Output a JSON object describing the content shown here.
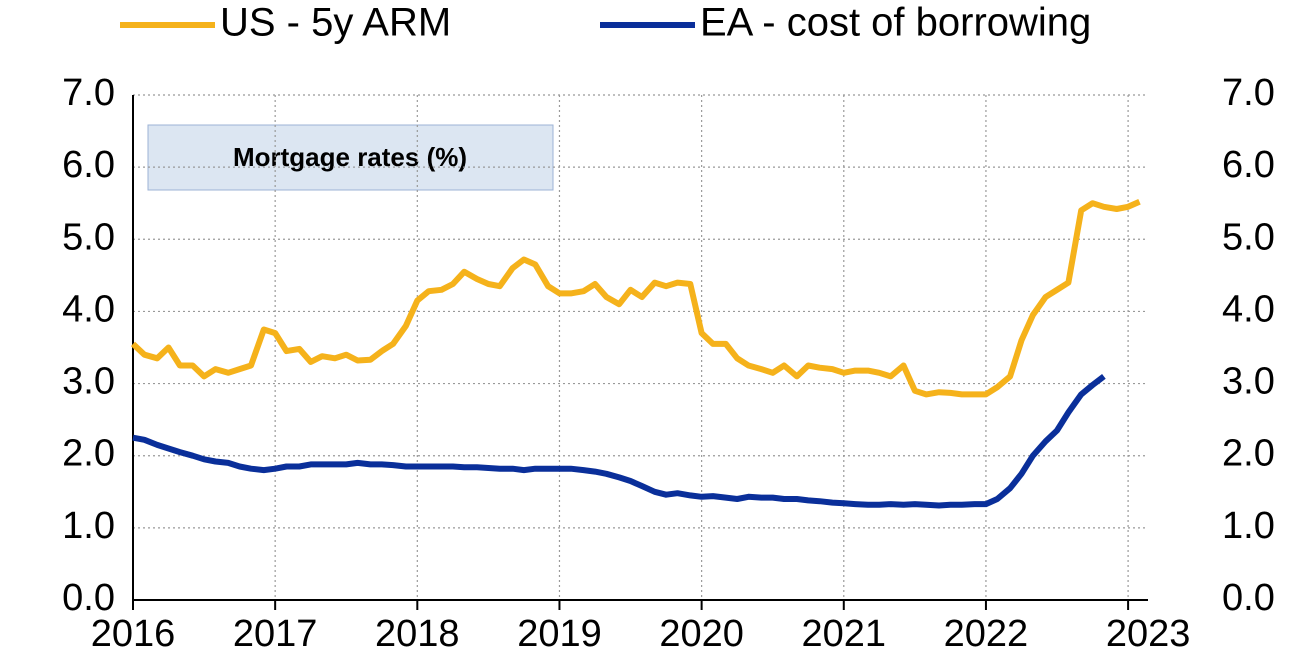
{
  "chart_data": {
    "type": "line",
    "title": "Mortgage rates (%)",
    "x": [
      2016,
      2016.08,
      2016.17,
      2016.25,
      2016.33,
      2016.42,
      2016.5,
      2016.58,
      2016.67,
      2016.75,
      2016.83,
      2016.92,
      2017,
      2017.08,
      2017.17,
      2017.25,
      2017.33,
      2017.42,
      2017.5,
      2017.58,
      2017.67,
      2017.75,
      2017.83,
      2017.92,
      2018,
      2018.08,
      2018.17,
      2018.25,
      2018.33,
      2018.42,
      2018.5,
      2018.58,
      2018.67,
      2018.75,
      2018.83,
      2018.92,
      2019,
      2019.08,
      2019.17,
      2019.25,
      2019.33,
      2019.42,
      2019.5,
      2019.58,
      2019.67,
      2019.75,
      2019.83,
      2019.92,
      2020,
      2020.08,
      2020.17,
      2020.25,
      2020.33,
      2020.42,
      2020.5,
      2020.58,
      2020.67,
      2020.75,
      2020.83,
      2020.92,
      2021,
      2021.08,
      2021.17,
      2021.25,
      2021.33,
      2021.42,
      2021.5,
      2021.58,
      2021.67,
      2021.75,
      2021.83,
      2021.92,
      2022,
      2022.08,
      2022.17,
      2022.25,
      2022.33,
      2022.42,
      2022.5,
      2022.58,
      2022.67,
      2022.75,
      2022.83,
      2022.92,
      2023,
      2023.08
    ],
    "series": [
      {
        "name": "US - 5y ARM",
        "color": "#f5b21b",
        "values": [
          3.55,
          3.4,
          3.35,
          3.5,
          3.25,
          3.25,
          3.1,
          3.2,
          3.15,
          3.2,
          3.25,
          3.75,
          3.7,
          3.45,
          3.48,
          3.3,
          3.38,
          3.35,
          3.4,
          3.32,
          3.33,
          3.45,
          3.55,
          3.8,
          4.15,
          4.28,
          4.3,
          4.38,
          4.55,
          4.45,
          4.38,
          4.35,
          4.6,
          4.72,
          4.65,
          4.35,
          4.25,
          4.25,
          4.28,
          4.38,
          4.2,
          4.1,
          4.3,
          4.2,
          4.4,
          4.35,
          4.4,
          4.38,
          3.7,
          3.55,
          3.55,
          3.35,
          3.25,
          3.2,
          3.15,
          3.25,
          3.1,
          3.25,
          3.22,
          3.2,
          3.15,
          3.18,
          3.18,
          3.15,
          3.1,
          3.25,
          2.9,
          2.85,
          2.88,
          2.87,
          2.85,
          2.85,
          2.85,
          2.95,
          3.1,
          3.6,
          3.95,
          4.2,
          4.3,
          4.4,
          5.4,
          5.5,
          5.45,
          5.42,
          5.45,
          5.52
        ]
      },
      {
        "name": "EA - cost of borrowing",
        "color": "#0a2f9a",
        "values": [
          2.25,
          2.22,
          2.15,
          2.1,
          2.05,
          2.0,
          1.95,
          1.92,
          1.9,
          1.85,
          1.82,
          1.8,
          1.82,
          1.85,
          1.85,
          1.88,
          1.88,
          1.88,
          1.88,
          1.9,
          1.88,
          1.88,
          1.87,
          1.85,
          1.85,
          1.85,
          1.85,
          1.85,
          1.84,
          1.84,
          1.83,
          1.82,
          1.82,
          1.8,
          1.82,
          1.82,
          1.82,
          1.82,
          1.8,
          1.78,
          1.75,
          1.7,
          1.65,
          1.58,
          1.5,
          1.46,
          1.48,
          1.45,
          1.43,
          1.44,
          1.42,
          1.4,
          1.43,
          1.42,
          1.42,
          1.4,
          1.4,
          1.38,
          1.37,
          1.35,
          1.34,
          1.33,
          1.32,
          1.32,
          1.33,
          1.32,
          1.33,
          1.32,
          1.31,
          1.32,
          1.32,
          1.33,
          1.33,
          1.4,
          1.55,
          1.75,
          2.0,
          2.2,
          2.35,
          2.6,
          2.85,
          2.98,
          3.1,
          null,
          null,
          null
        ]
      }
    ],
    "xlim": [
      2016,
      2023.14
    ],
    "xticks": [
      2016,
      2017,
      2018,
      2019,
      2020,
      2021,
      2022,
      2023
    ],
    "ylim": [
      0,
      7
    ],
    "yticks": [
      {
        "value": 0,
        "label": "0.0"
      },
      {
        "value": 1,
        "label": "1.0"
      },
      {
        "value": 2,
        "label": "2.0"
      },
      {
        "value": 3,
        "label": "3.0"
      },
      {
        "value": 4,
        "label": "4.0"
      },
      {
        "value": 5,
        "label": "5.0"
      },
      {
        "value": 6,
        "label": "6.0"
      },
      {
        "value": 7,
        "label": "7.0"
      }
    ],
    "y2lim": [
      0,
      7
    ],
    "y2ticks": [
      {
        "value": 0,
        "label": "0.0"
      },
      {
        "value": 1,
        "label": "1.0"
      },
      {
        "value": 2,
        "label": "2.0"
      },
      {
        "value": 3,
        "label": "3.0"
      },
      {
        "value": 4,
        "label": "4.0"
      },
      {
        "value": 5,
        "label": "5.0"
      },
      {
        "value": 6,
        "label": "6.0"
      },
      {
        "value": 7,
        "label": "7.0"
      }
    ],
    "grid": true,
    "legend": "top"
  }
}
